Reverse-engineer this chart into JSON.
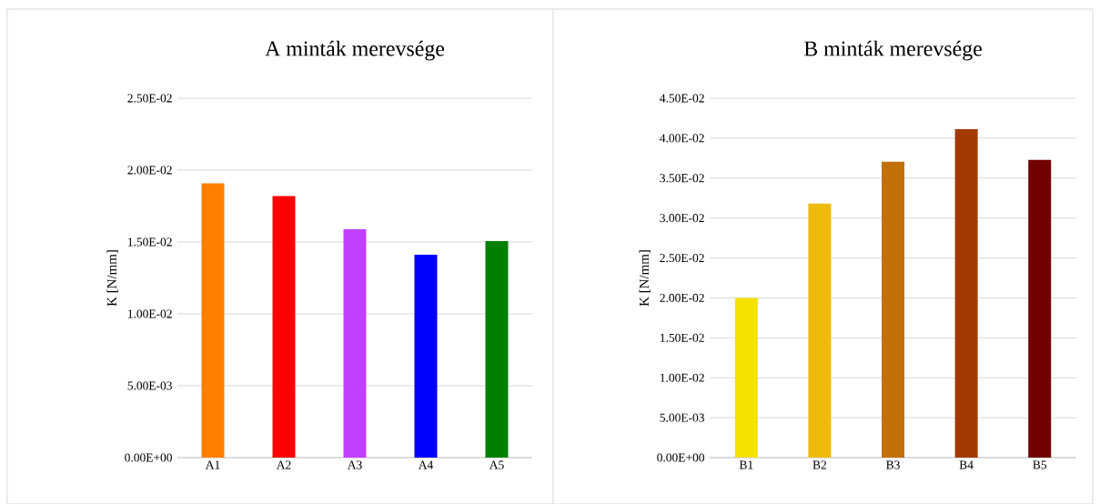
{
  "chart_data": [
    {
      "type": "bar",
      "title": "A minták merevsége",
      "ylabel": "K [N/mm]",
      "categories": [
        "A1",
        "A2",
        "A3",
        "A4",
        "A5"
      ],
      "values": [
        0.01908,
        0.0182,
        0.01588,
        0.01412,
        0.01506
      ],
      "colors": [
        "#ff8000",
        "#ff0000",
        "#bf40ff",
        "#0000ff",
        "#008000"
      ],
      "ylim": [
        0,
        0.025
      ],
      "yticks": [
        {
          "value": 0,
          "label": "0.00E+00"
        },
        {
          "value": 0.005,
          "label": "5.00E-03"
        },
        {
          "value": 0.01,
          "label": "1.00E-02"
        },
        {
          "value": 0.015,
          "label": "1.50E-02"
        },
        {
          "value": 0.02,
          "label": "2.00E-02"
        },
        {
          "value": 0.025,
          "label": "2.50E-02"
        }
      ],
      "grid": "y"
    },
    {
      "type": "bar",
      "title": "B minták merevsége",
      "ylabel": "K [N/mm]",
      "categories": [
        "B1",
        "B2",
        "B3",
        "B4",
        "B5"
      ],
      "values": [
        0.02,
        0.03182,
        0.03705,
        0.04114,
        0.03727
      ],
      "colors": [
        "#f5e100",
        "#eebb0c",
        "#c27009",
        "#a33a05",
        "#720000"
      ],
      "ylim": [
        0,
        0.045
      ],
      "yticks": [
        {
          "value": 0,
          "label": "0.00E+00"
        },
        {
          "value": 0.005,
          "label": "5.00E-03"
        },
        {
          "value": 0.01,
          "label": "1.00E-02"
        },
        {
          "value": 0.015,
          "label": "1.50E-02"
        },
        {
          "value": 0.02,
          "label": "2.00E-02"
        },
        {
          "value": 0.025,
          "label": "2.50E-02"
        },
        {
          "value": 0.03,
          "label": "3.00E-02"
        },
        {
          "value": 0.035,
          "label": "3.50E-02"
        },
        {
          "value": 0.04,
          "label": "4.00E-02"
        },
        {
          "value": 0.045,
          "label": "4.50E-02"
        }
      ],
      "grid": "y"
    }
  ]
}
